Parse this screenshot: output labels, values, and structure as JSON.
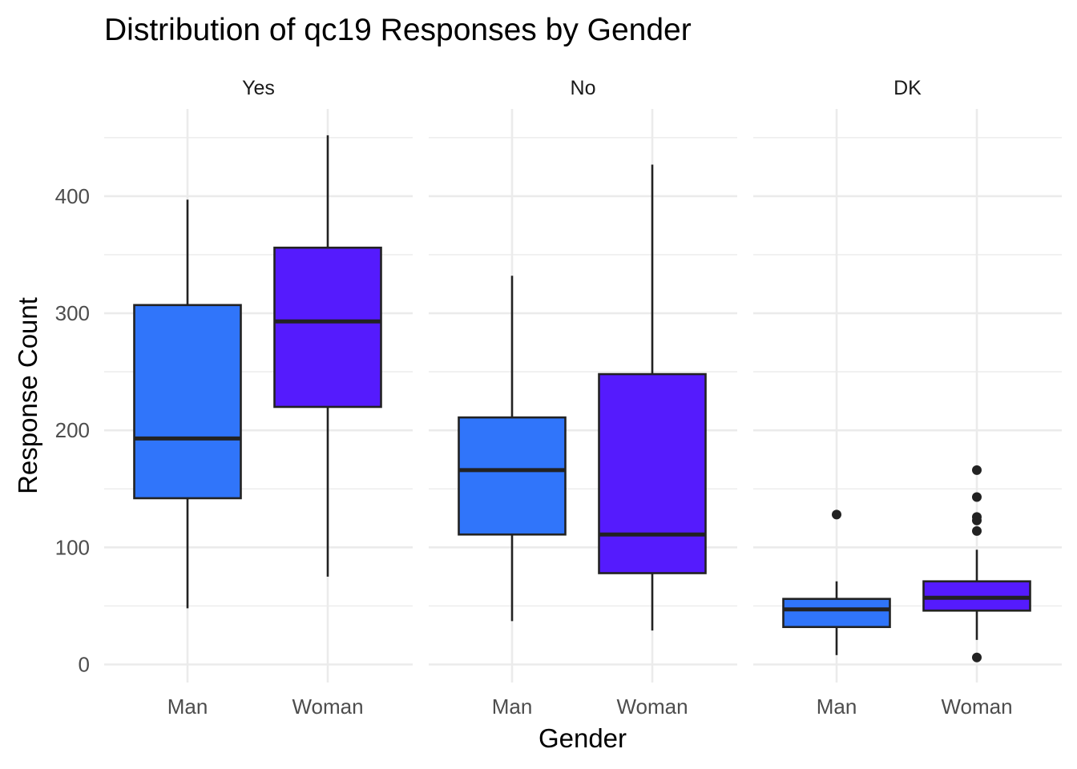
{
  "chart_data": {
    "type": "boxplot",
    "title": "Distribution of qc19 Responses by Gender",
    "xlabel": "Gender",
    "ylabel": "Response Count",
    "ylim": [
      -10,
      460
    ],
    "yticks": [
      0,
      100,
      200,
      300,
      400
    ],
    "grid": true,
    "legend": "none",
    "categories": [
      "Man",
      "Woman"
    ],
    "colors": {
      "Man": "#3075fa",
      "Woman": "#551bfd"
    },
    "facets": [
      {
        "label": "Yes",
        "boxes": [
          {
            "category": "Man",
            "min": 48,
            "q1": 142,
            "median": 193,
            "q3": 307,
            "max": 397,
            "outliers": []
          },
          {
            "category": "Woman",
            "min": 75,
            "q1": 220,
            "median": 293,
            "q3": 356,
            "max": 452,
            "outliers": []
          }
        ]
      },
      {
        "label": "No",
        "boxes": [
          {
            "category": "Man",
            "min": 37,
            "q1": 111,
            "median": 166,
            "q3": 211,
            "max": 332,
            "outliers": []
          },
          {
            "category": "Woman",
            "min": 29,
            "q1": 78,
            "median": 111,
            "q3": 248,
            "max": 427,
            "outliers": []
          }
        ]
      },
      {
        "label": "DK",
        "boxes": [
          {
            "category": "Man",
            "min": 8,
            "q1": 32,
            "median": 47,
            "q3": 56,
            "max": 71,
            "outliers": [
              128
            ]
          },
          {
            "category": "Woman",
            "min": 21,
            "q1": 46,
            "median": 57,
            "q3": 71,
            "max": 98,
            "outliers": [
              166,
              143,
              126,
              123,
              114,
              6
            ]
          }
        ]
      }
    ]
  }
}
